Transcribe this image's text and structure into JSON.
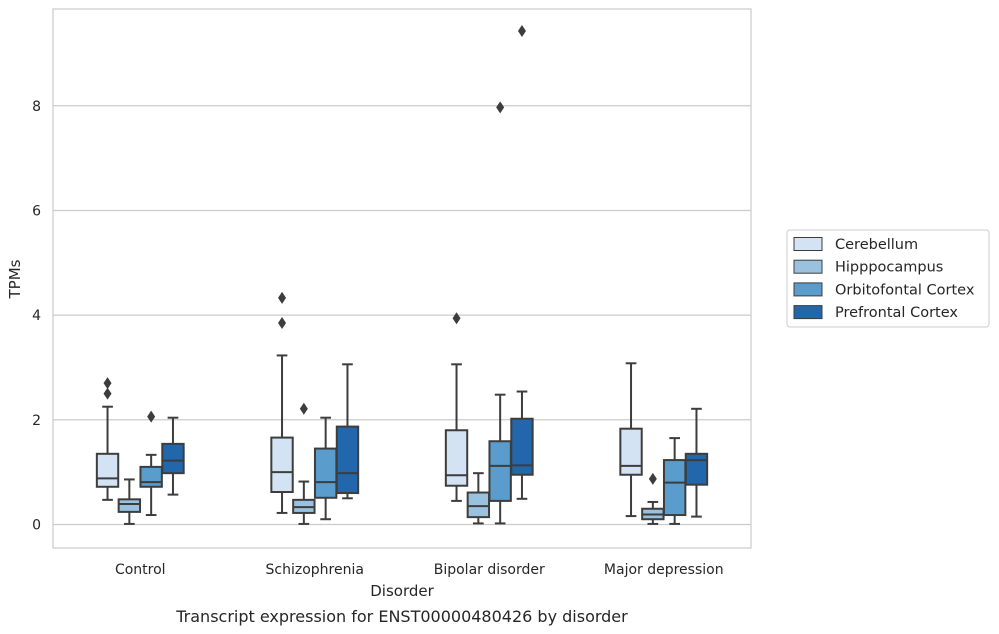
{
  "chart_data": {
    "type": "box",
    "xlabel": "Disorder",
    "ylabel": "TPMs",
    "caption": "Transcript expression for ENST00000480426 by disorder",
    "ylim": [
      -0.45,
      9.85
    ],
    "yticks": [
      0,
      2,
      4,
      6,
      8
    ],
    "grid": "horizontal",
    "legend_position": "right",
    "categories": [
      "Control",
      "Schizophrenia",
      "Bipolar disorder",
      "Major depression"
    ],
    "series": [
      {
        "name": "Cerebellum",
        "color": "#d4e3f3",
        "boxes": [
          {
            "whisker_low": 0.47,
            "q1": 0.72,
            "median": 0.88,
            "q3": 1.35,
            "whisker_high": 2.25,
            "outliers": [
              2.5,
              2.7
            ]
          },
          {
            "whisker_low": 0.22,
            "q1": 0.62,
            "median": 1.0,
            "q3": 1.66,
            "whisker_high": 3.23,
            "outliers": [
              3.85,
              4.33
            ]
          },
          {
            "whisker_low": 0.45,
            "q1": 0.74,
            "median": 0.94,
            "q3": 1.8,
            "whisker_high": 3.06,
            "outliers": [
              3.94
            ]
          },
          {
            "whisker_low": 0.16,
            "q1": 0.95,
            "median": 1.12,
            "q3": 1.83,
            "whisker_high": 3.08,
            "outliers": []
          }
        ]
      },
      {
        "name": "Hipppocampus",
        "color": "#9ac1dd",
        "boxes": [
          {
            "whisker_low": 0.01,
            "q1": 0.24,
            "median": 0.39,
            "q3": 0.48,
            "whisker_high": 0.86,
            "outliers": []
          },
          {
            "whisker_low": 0.01,
            "q1": 0.22,
            "median": 0.33,
            "q3": 0.47,
            "whisker_high": 0.82,
            "outliers": [
              2.21
            ]
          },
          {
            "whisker_low": 0.02,
            "q1": 0.14,
            "median": 0.35,
            "q3": 0.61,
            "whisker_high": 0.98,
            "outliers": []
          },
          {
            "whisker_low": 0.01,
            "q1": 0.1,
            "median": 0.19,
            "q3": 0.3,
            "whisker_high": 0.43,
            "outliers": [
              0.87
            ]
          }
        ]
      },
      {
        "name": "Orbitofontal Cortex",
        "color": "#5a9ccb",
        "boxes": [
          {
            "whisker_low": 0.18,
            "q1": 0.72,
            "median": 0.81,
            "q3": 1.1,
            "whisker_high": 1.33,
            "outliers": [
              2.06
            ]
          },
          {
            "whisker_low": 0.1,
            "q1": 0.51,
            "median": 0.81,
            "q3": 1.45,
            "whisker_high": 2.04,
            "outliers": []
          },
          {
            "whisker_low": 0.02,
            "q1": 0.45,
            "median": 1.12,
            "q3": 1.59,
            "whisker_high": 2.48,
            "outliers": [
              7.97
            ]
          },
          {
            "whisker_low": 0.01,
            "q1": 0.18,
            "median": 0.8,
            "q3": 1.23,
            "whisker_high": 1.65,
            "outliers": []
          }
        ]
      },
      {
        "name": "Prefrontal Cortex",
        "color": "#2266ac",
        "boxes": [
          {
            "whisker_low": 0.57,
            "q1": 0.98,
            "median": 1.22,
            "q3": 1.54,
            "whisker_high": 2.04,
            "outliers": []
          },
          {
            "whisker_low": 0.5,
            "q1": 0.6,
            "median": 0.98,
            "q3": 1.87,
            "whisker_high": 3.06,
            "outliers": []
          },
          {
            "whisker_low": 0.49,
            "q1": 0.95,
            "median": 1.13,
            "q3": 2.02,
            "whisker_high": 2.54,
            "outliers": [
              9.43
            ]
          },
          {
            "whisker_low": 0.15,
            "q1": 0.76,
            "median": 1.23,
            "q3": 1.35,
            "whisker_high": 2.21,
            "outliers": []
          }
        ]
      }
    ]
  }
}
